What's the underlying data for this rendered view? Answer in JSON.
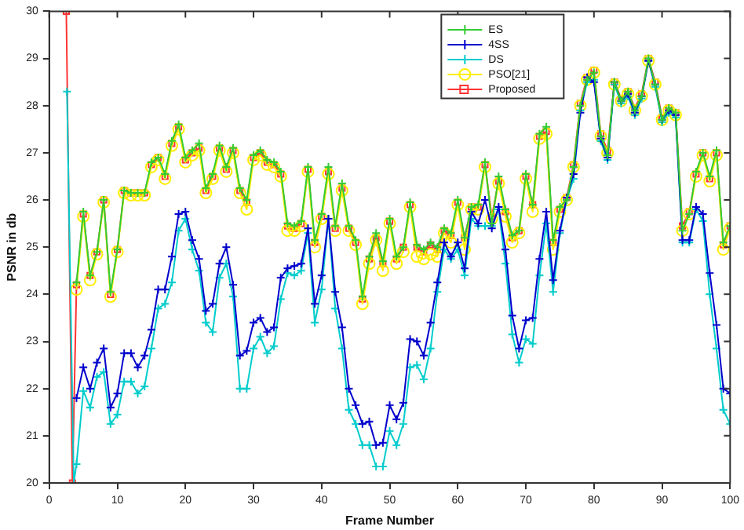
{
  "chart_data": {
    "type": "line",
    "xlabel": "Frame Number",
    "ylabel": "PSNR in db",
    "xlim": [
      0,
      100
    ],
    "xticks": [
      0,
      10,
      20,
      30,
      40,
      50,
      60,
      70,
      80,
      90,
      100
    ],
    "ylim": [
      20,
      30
    ],
    "yticks": [
      20,
      21,
      22,
      23,
      24,
      25,
      26,
      27,
      28,
      29,
      30
    ],
    "grid": false,
    "legend": "top right",
    "line_style": "solid",
    "x": [
      4,
      5,
      6,
      7,
      8,
      9,
      10,
      11,
      12,
      13,
      14,
      15,
      16,
      17,
      18,
      19,
      20,
      21,
      22,
      23,
      24,
      25,
      26,
      27,
      28,
      29,
      30,
      31,
      32,
      33,
      34,
      35,
      36,
      37,
      38,
      39,
      40,
      41,
      42,
      43,
      44,
      45,
      46,
      47,
      48,
      49,
      50,
      51,
      52,
      53,
      54,
      55,
      56,
      57,
      58,
      59,
      60,
      61,
      62,
      63,
      64,
      65,
      66,
      67,
      68,
      69,
      70,
      71,
      72,
      73,
      74,
      75,
      76,
      77,
      78,
      79,
      80,
      81,
      82,
      83,
      84,
      85,
      86,
      87,
      88,
      89,
      90,
      91,
      92,
      93,
      94,
      95,
      96,
      97,
      98,
      99,
      100
    ],
    "series": [
      {
        "name": "ES",
        "color": "#33cc33",
        "marker": "cross",
        "values": [
          24.25,
          25.75,
          24.4,
          24.9,
          26.0,
          24.05,
          24.95,
          26.2,
          26.15,
          26.15,
          26.15,
          26.8,
          26.9,
          26.55,
          27.25,
          27.6,
          26.9,
          27.05,
          27.2,
          26.25,
          26.55,
          27.15,
          26.7,
          27.1,
          26.25,
          26.0,
          26.95,
          27.05,
          26.85,
          26.8,
          26.6,
          25.5,
          25.45,
          25.55,
          26.7,
          25.15,
          25.7,
          26.7,
          25.45,
          26.35,
          25.45,
          25.15,
          23.95,
          24.8,
          25.3,
          24.7,
          25.6,
          24.8,
          25.0,
          25.95,
          25.05,
          24.95,
          25.1,
          25.0,
          25.4,
          25.3,
          26.0,
          25.2,
          25.85,
          25.9,
          26.8,
          25.5,
          26.5,
          25.8,
          25.25,
          25.35,
          26.55,
          25.9,
          27.4,
          27.55,
          25.15,
          25.85,
          26.0,
          26.7,
          28.0,
          28.55,
          28.7,
          27.35,
          26.95,
          28.5,
          28.1,
          28.3,
          27.9,
          28.2,
          29.0,
          28.45,
          27.7,
          27.95,
          27.85,
          25.35,
          25.7,
          26.6,
          27.0,
          26.5,
          27.05,
          25.1,
          25.45
        ]
      },
      {
        "name": "4SS",
        "color": "#0000cc",
        "marker": "cross",
        "values": [
          21.8,
          22.45,
          22.0,
          22.55,
          22.85,
          21.6,
          21.9,
          22.75,
          22.75,
          22.45,
          22.7,
          23.25,
          24.1,
          24.1,
          24.8,
          25.7,
          25.75,
          25.15,
          24.75,
          23.65,
          23.8,
          24.65,
          25.0,
          24.2,
          22.7,
          22.8,
          23.4,
          23.5,
          23.2,
          23.3,
          24.35,
          24.55,
          24.6,
          24.65,
          25.4,
          23.8,
          24.4,
          25.6,
          24.05,
          23.3,
          22.0,
          21.65,
          21.25,
          21.3,
          20.8,
          20.85,
          21.65,
          21.35,
          21.7,
          23.05,
          23.0,
          22.7,
          23.4,
          24.25,
          25.1,
          24.8,
          25.1,
          24.55,
          25.75,
          25.5,
          26.0,
          25.4,
          25.85,
          24.95,
          23.55,
          22.85,
          23.45,
          23.5,
          24.75,
          25.75,
          24.3,
          25.35,
          26.05,
          26.55,
          27.85,
          28.6,
          28.5,
          27.3,
          26.9,
          28.5,
          28.1,
          28.25,
          27.85,
          28.2,
          28.95,
          28.45,
          27.7,
          27.9,
          27.8,
          25.15,
          25.15,
          25.85,
          25.7,
          24.45,
          23.35,
          22.0,
          21.9
        ]
      },
      {
        "name": "DS",
        "color": "#00cccc",
        "marker": "cross",
        "x": [
          2.6,
          3.6,
          4,
          5,
          6,
          7,
          8,
          9,
          10,
          11,
          12,
          13,
          14,
          15,
          16,
          17,
          18,
          19,
          20,
          21,
          22,
          23,
          24,
          25,
          26,
          27,
          28,
          29,
          30,
          31,
          32,
          33,
          34,
          35,
          36,
          37,
          38,
          39,
          40,
          41,
          42,
          43,
          44,
          45,
          46,
          47,
          48,
          49,
          50,
          51,
          52,
          53,
          54,
          55,
          56,
          57,
          58,
          59,
          60,
          61,
          62,
          63,
          64,
          65,
          66,
          67,
          68,
          69,
          70,
          71,
          72,
          73,
          74,
          75,
          76,
          77,
          78,
          79,
          80,
          81,
          82,
          83,
          84,
          85,
          86,
          87,
          88,
          89,
          90,
          91,
          92,
          93,
          94,
          95,
          96,
          97,
          98,
          99,
          100
        ],
        "values": [
          28.3,
          20,
          20.4,
          21.95,
          21.6,
          22.25,
          22.35,
          21.25,
          21.45,
          22.15,
          22.15,
          21.9,
          22.05,
          22.85,
          23.7,
          23.8,
          24.25,
          25.35,
          25.6,
          24.95,
          24.5,
          23.4,
          23.2,
          24.35,
          24.65,
          23.95,
          22.0,
          22.0,
          22.85,
          23.1,
          22.75,
          22.9,
          23.9,
          24.45,
          24.4,
          24.5,
          25.3,
          23.4,
          24.1,
          25.6,
          23.7,
          22.85,
          21.55,
          21.25,
          20.8,
          20.8,
          20.35,
          20.35,
          21.1,
          20.8,
          21.25,
          22.45,
          22.5,
          22.2,
          22.85,
          24.05,
          24.95,
          24.75,
          24.95,
          24.4,
          25.6,
          25.45,
          25.45,
          25.45,
          25.8,
          24.65,
          23.15,
          22.55,
          23.05,
          22.95,
          24.4,
          25.5,
          24.05,
          25.3,
          26.0,
          26.45,
          27.9,
          28.5,
          28.55,
          27.25,
          26.85,
          28.45,
          28.05,
          28.2,
          27.8,
          28.15,
          28.95,
          28.4,
          27.65,
          27.85,
          27.75,
          25.1,
          25.1,
          25.8,
          25.55,
          24.0,
          22.85,
          21.55,
          21.25
        ]
      },
      {
        "name": "PSO[21]",
        "color": "#ffee00",
        "marker": "circle",
        "values": [
          24.1,
          25.65,
          24.3,
          24.85,
          25.95,
          23.95,
          24.9,
          26.15,
          26.1,
          26.1,
          26.1,
          26.7,
          26.85,
          26.45,
          27.15,
          27.5,
          26.8,
          26.95,
          27.05,
          26.15,
          26.45,
          27.05,
          26.6,
          27.0,
          26.15,
          25.8,
          26.85,
          26.95,
          26.75,
          26.7,
          26.5,
          25.35,
          25.35,
          25.45,
          26.6,
          25.0,
          25.6,
          26.55,
          25.35,
          26.2,
          25.35,
          25.05,
          23.8,
          24.65,
          25.15,
          24.5,
          25.5,
          24.65,
          24.9,
          25.85,
          24.8,
          24.75,
          24.85,
          24.8,
          25.3,
          25.1,
          25.9,
          24.95,
          25.8,
          25.8,
          26.7,
          25.6,
          26.35,
          25.65,
          25.1,
          25.3,
          26.45,
          25.75,
          27.3,
          27.4,
          24.95,
          25.75,
          26.0,
          26.7,
          28.0,
          28.55,
          28.7,
          27.35,
          27.0,
          28.45,
          28.1,
          28.25,
          27.9,
          28.2,
          28.95,
          28.45,
          27.7,
          27.9,
          27.8,
          25.35,
          25.7,
          26.5,
          26.95,
          26.4,
          26.95,
          24.95,
          25.4
        ]
      },
      {
        "name": "Proposed",
        "color": "#ff3333",
        "marker": "square",
        "x": [
          2.5,
          3.4,
          4,
          5,
          6,
          7,
          8,
          9,
          10,
          11,
          12,
          13,
          14,
          15,
          16,
          17,
          18,
          19,
          20,
          21,
          22,
          23,
          24,
          25,
          26,
          27,
          28,
          29,
          30,
          31,
          32,
          33,
          34,
          35,
          36,
          37,
          38,
          39,
          40,
          41,
          42,
          43,
          44,
          45,
          46,
          47,
          48,
          49,
          50,
          51,
          52,
          53,
          54,
          55,
          56,
          57,
          58,
          59,
          60,
          61,
          62,
          63,
          64,
          65,
          66,
          67,
          68,
          69,
          70,
          71,
          72,
          73,
          74,
          75,
          76,
          77,
          78,
          79,
          80,
          81,
          82,
          83,
          84,
          85,
          86,
          87,
          88,
          89,
          90,
          91,
          92,
          93,
          94,
          95,
          96,
          97,
          98,
          99,
          100
        ],
        "values": [
          30,
          20,
          24.2,
          25.7,
          24.4,
          24.9,
          26.0,
          24.0,
          24.95,
          26.2,
          26.15,
          26.15,
          26.15,
          26.75,
          26.9,
          26.5,
          27.2,
          27.55,
          26.85,
          27.0,
          27.1,
          26.2,
          26.5,
          27.1,
          26.65,
          27.05,
          26.2,
          25.95,
          26.9,
          27.0,
          26.8,
          26.75,
          26.55,
          25.45,
          25.4,
          25.5,
          26.65,
          25.1,
          25.65,
          26.6,
          25.4,
          26.25,
          25.4,
          25.1,
          23.9,
          24.75,
          25.2,
          24.65,
          25.55,
          24.75,
          25.0,
          25.9,
          25.0,
          24.9,
          25.05,
          24.95,
          25.35,
          25.25,
          25.95,
          25.2,
          25.85,
          25.85,
          26.75,
          25.65,
          26.4,
          25.75,
          25.2,
          25.35,
          26.5,
          25.9,
          27.35,
          27.45,
          25.1,
          25.8,
          26.05,
          26.75,
          28.05,
          28.6,
          28.75,
          27.4,
          27.05,
          28.5,
          28.15,
          28.3,
          27.95,
          28.25,
          29.0,
          28.5,
          27.75,
          27.95,
          27.85,
          25.45,
          25.75,
          26.55,
          27.0,
          26.45,
          27.0,
          25.05,
          25.45
        ]
      }
    ]
  }
}
